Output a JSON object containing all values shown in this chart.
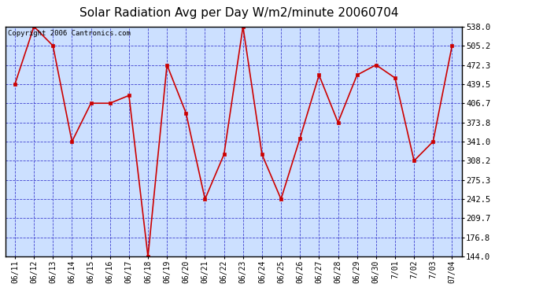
{
  "title": "Solar Radiation Avg per Day W/m2/minute 20060704",
  "copyright": "Copyright 2006 Cantronics.com",
  "dates": [
    "06/11",
    "06/12",
    "06/13",
    "06/14",
    "06/15",
    "06/16",
    "06/17",
    "06/18",
    "06/19",
    "06/20",
    "06/21",
    "06/22",
    "06/23",
    "06/24",
    "06/25",
    "06/26",
    "06/27",
    "06/28",
    "06/29",
    "06/30",
    "7/01",
    "7/02",
    "7/03",
    "07/04"
  ],
  "values": [
    439.5,
    538.0,
    505.2,
    341.0,
    406.7,
    406.7,
    420.0,
    144.0,
    472.3,
    390.0,
    242.5,
    319.0,
    538.0,
    319.0,
    242.5,
    347.0,
    455.0,
    373.8,
    455.0,
    472.3,
    450.0,
    308.2,
    341.0,
    505.2
  ],
  "ylim": [
    144.0,
    538.0
  ],
  "yticks": [
    144.0,
    176.8,
    209.7,
    242.5,
    275.3,
    308.2,
    341.0,
    373.8,
    406.7,
    439.5,
    472.3,
    505.2,
    538.0
  ],
  "ytick_labels": [
    "144.0",
    "176.8",
    "209.7",
    "242.5",
    "275.3",
    "308.2",
    "341.0",
    "373.8",
    "406.7",
    "439.5",
    "472.3",
    "505.2",
    "538.0"
  ],
  "line_color": "#cc0000",
  "marker_color": "#cc0000",
  "bg_color": "#cce0ff",
  "grid_color": "#3333cc",
  "border_color": "#000000",
  "title_fontsize": 11,
  "copyright_fontsize": 6.5,
  "tick_fontsize": 7,
  "ytick_fontsize": 7.5
}
